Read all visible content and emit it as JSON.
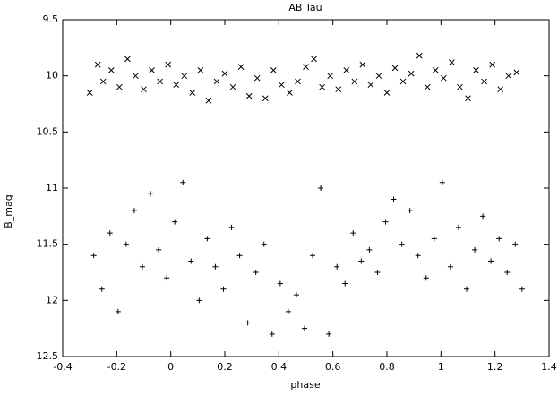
{
  "chart_data": {
    "type": "scatter",
    "title": "AB Tau",
    "x_label": "phase",
    "y_label": "B_mag",
    "xlim": [
      -0.4,
      1.4
    ],
    "xticks": [
      -0.4,
      -0.2,
      0,
      0.2,
      0.4,
      0.6,
      0.8,
      1,
      1.2,
      1.4
    ],
    "ylim": [
      9.5,
      12.5
    ],
    "yticks": [
      9.5,
      10,
      10.5,
      11,
      11.5,
      12,
      12.5
    ],
    "y_reversed": true,
    "grid": false,
    "series": [
      {
        "color": "#000000",
        "marker": "x",
        "x": [
          -0.3,
          -0.27,
          -0.25,
          -0.22,
          -0.19,
          -0.16,
          -0.13,
          -0.1,
          -0.07,
          -0.04,
          -0.01,
          0.02,
          0.05,
          0.08,
          0.11,
          0.14,
          0.17,
          0.2,
          0.23,
          0.26,
          0.29,
          0.32,
          0.35,
          0.38,
          0.41,
          0.44,
          0.47,
          0.5,
          0.53,
          0.56,
          0.59,
          0.62,
          0.65,
          0.68,
          0.71,
          0.74,
          0.77,
          0.8,
          0.83,
          0.86,
          0.89,
          0.92,
          0.95,
          0.98,
          1.01,
          1.04,
          1.07,
          1.1,
          1.13,
          1.16,
          1.19,
          1.22,
          1.25,
          1.28
        ],
        "values": [
          10.15,
          9.9,
          10.05,
          9.95,
          10.1,
          9.85,
          10.0,
          10.12,
          9.95,
          10.05,
          9.9,
          10.08,
          10.0,
          10.15,
          9.95,
          10.22,
          10.05,
          9.98,
          10.1,
          9.92,
          10.18,
          10.02,
          10.2,
          9.95,
          10.08,
          10.15,
          10.05,
          9.92,
          9.85,
          10.1,
          10.0,
          10.12,
          9.95,
          10.05,
          9.9,
          10.08,
          10.0,
          10.15,
          9.93,
          10.05,
          9.98,
          9.82,
          10.1,
          9.95,
          10.02,
          9.88,
          10.1,
          10.2,
          9.95,
          10.05,
          9.9,
          10.12,
          10.0,
          9.97
        ]
      },
      {
        "color": "#000000",
        "marker": "+",
        "x": [
          -0.285,
          -0.255,
          -0.225,
          -0.195,
          -0.165,
          -0.135,
          -0.105,
          -0.075,
          -0.045,
          -0.015,
          0.015,
          0.045,
          0.075,
          0.105,
          0.135,
          0.165,
          0.195,
          0.225,
          0.255,
          0.285,
          0.315,
          0.345,
          0.375,
          0.405,
          0.435,
          0.465,
          0.495,
          0.525,
          0.555,
          0.585,
          0.615,
          0.645,
          0.675,
          0.705,
          0.735,
          0.765,
          0.795,
          0.825,
          0.855,
          0.885,
          0.915,
          0.945,
          0.975,
          1.005,
          1.035,
          1.065,
          1.095,
          1.125,
          1.155,
          1.185,
          1.215,
          1.245,
          1.275,
          1.3
        ],
        "values": [
          11.6,
          11.9,
          11.4,
          12.1,
          11.5,
          11.2,
          11.7,
          11.05,
          11.55,
          11.8,
          11.3,
          10.95,
          11.65,
          12.0,
          11.45,
          11.7,
          11.9,
          11.35,
          11.6,
          12.2,
          11.75,
          11.5,
          12.3,
          11.85,
          12.1,
          11.95,
          12.25,
          11.6,
          11.0,
          12.3,
          11.7,
          11.85,
          11.4,
          11.65,
          11.55,
          11.75,
          11.3,
          11.1,
          11.5,
          11.2,
          11.6,
          11.8,
          11.45,
          10.95,
          11.7,
          11.35,
          11.9,
          11.55,
          11.25,
          11.65,
          11.45,
          11.75,
          11.5,
          11.9
        ]
      }
    ]
  }
}
